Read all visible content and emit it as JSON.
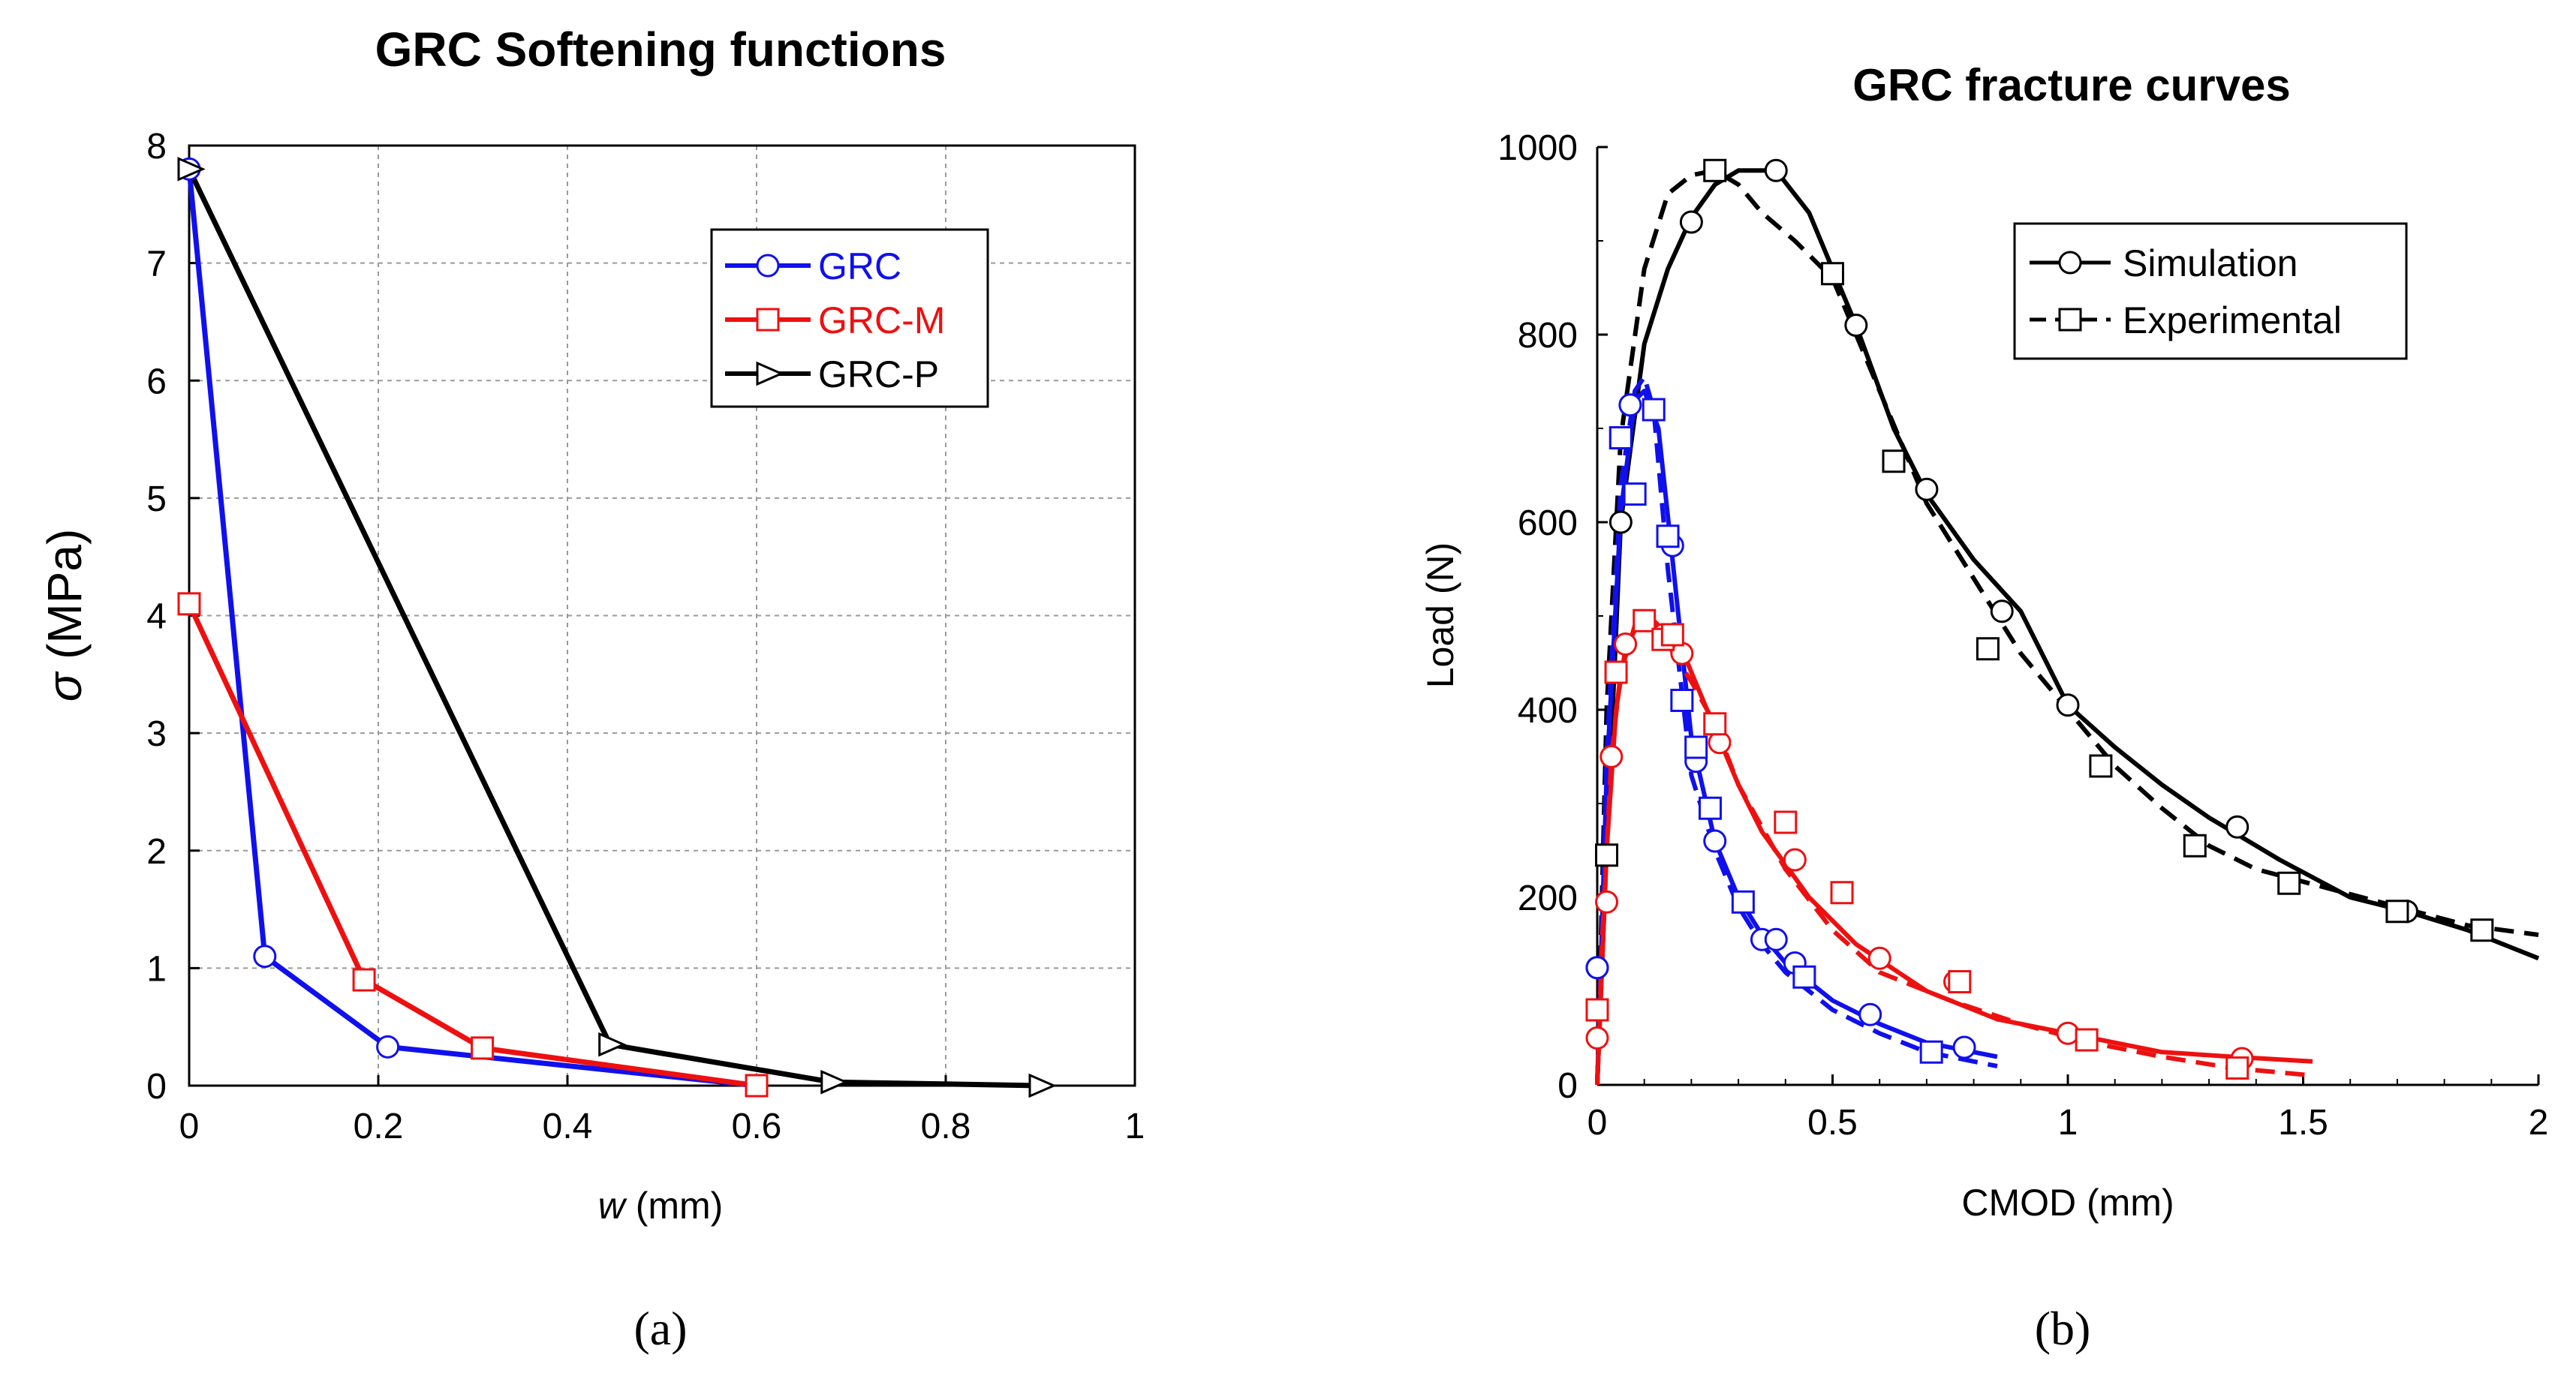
{
  "chart_data": [
    {
      "type": "line",
      "title": "GRC Softening functions",
      "xlabel_var": "w",
      "xlabel_unit": " (mm)",
      "ylabel_var": "σ",
      "ylabel_unit": " (MPa)",
      "xlim": [
        0,
        1
      ],
      "ylim": [
        0,
        8
      ],
      "xticks": [
        0,
        0.2,
        0.4,
        0.6,
        0.8,
        1
      ],
      "xtick_labels": [
        "0",
        "0.2",
        "0.4",
        "0.6",
        "0.8",
        "1"
      ],
      "yticks": [
        0,
        1,
        2,
        3,
        4,
        5,
        6,
        7,
        8
      ],
      "ytick_labels": [
        "0",
        "1",
        "2",
        "3",
        "4",
        "5",
        "6",
        "7",
        "8"
      ],
      "grid": true,
      "legend_position": "top-right",
      "panel_label": "(a)",
      "series": [
        {
          "name": "GRC",
          "color": "#1010ee",
          "marker": "circle",
          "x": [
            0,
            0.08,
            0.21,
            0.6
          ],
          "y": [
            7.8,
            1.1,
            0.33,
            0.0
          ]
        },
        {
          "name": "GRC-M",
          "color": "#ee1010",
          "marker": "square",
          "x": [
            0,
            0.185,
            0.31,
            0.6
          ],
          "y": [
            4.1,
            0.9,
            0.32,
            0.0
          ]
        },
        {
          "name": "GRC-P",
          "color": "#000000",
          "marker": "triangle-right",
          "x": [
            0,
            0.445,
            0.68,
            0.9
          ],
          "y": [
            7.8,
            0.35,
            0.03,
            0.0
          ]
        }
      ]
    },
    {
      "type": "line",
      "title": "GRC fracture curves",
      "xlabel": "CMOD (mm)",
      "ylabel": "Load (N)",
      "xlim": [
        0,
        2
      ],
      "ylim": [
        0,
        1000
      ],
      "xticks": [
        0,
        0.5,
        1,
        1.5,
        2
      ],
      "xtick_labels": [
        "0",
        "0.5",
        "1",
        "1.5",
        "2"
      ],
      "yticks": [
        0,
        200,
        400,
        600,
        800,
        1000
      ],
      "ytick_labels": [
        "0",
        "200",
        "400",
        "600",
        "800",
        "1000"
      ],
      "grid": false,
      "legend_position": "top-right",
      "legend": [
        {
          "name": "Simulation",
          "style": "solid",
          "marker": "circle"
        },
        {
          "name": "Experimental",
          "style": "dashed",
          "marker": "square"
        }
      ],
      "panel_label": "(b)",
      "series": [
        {
          "name": "GRC-P Simulation",
          "color": "#000000",
          "style": "solid",
          "marker": "circle",
          "x": [
            0,
            0.02,
            0.05,
            0.1,
            0.15,
            0.2,
            0.25,
            0.3,
            0.38,
            0.45,
            0.55,
            0.63,
            0.7,
            0.8,
            0.9,
            1.0,
            1.1,
            1.2,
            1.3,
            1.45,
            1.6,
            1.72,
            1.85,
            2.0
          ],
          "y": [
            0,
            250,
            600,
            790,
            870,
            925,
            960,
            975,
            975,
            930,
            810,
            700,
            630,
            560,
            505,
            405,
            360,
            320,
            285,
            240,
            200,
            185,
            165,
            135
          ],
          "marker_x": [
            0.0,
            0.02,
            0.05,
            0.2,
            0.38,
            0.55,
            0.7,
            0.86,
            1.0,
            1.36,
            1.72
          ],
          "marker_y": [
            125,
            245,
            600,
            920,
            975,
            810,
            635,
            505,
            405,
            275,
            185
          ]
        },
        {
          "name": "GRC-P Experimental",
          "color": "#000000",
          "style": "dashed",
          "marker": "square",
          "x": [
            0,
            0.02,
            0.05,
            0.1,
            0.15,
            0.2,
            0.25,
            0.3,
            0.35,
            0.42,
            0.5,
            0.6,
            0.7,
            0.8,
            0.9,
            1.0,
            1.1,
            1.2,
            1.3,
            1.4,
            1.55,
            1.7,
            1.85,
            2.0
          ],
          "y": [
            0,
            400,
            690,
            870,
            950,
            970,
            975,
            960,
            930,
            900,
            860,
            740,
            620,
            540,
            460,
            400,
            340,
            295,
            255,
            230,
            210,
            190,
            170,
            160
          ],
          "marker_x": [
            0.02,
            0.05,
            0.25,
            0.5,
            0.63,
            0.83,
            1.07,
            1.27,
            1.47,
            1.7,
            1.88
          ],
          "marker_y": [
            245,
            690,
            975,
            865,
            665,
            465,
            340,
            255,
            215,
            185,
            165
          ]
        },
        {
          "name": "GRC Simulation",
          "color": "#1010ee",
          "style": "solid",
          "marker": "circle",
          "x": [
            0,
            0.02,
            0.05,
            0.08,
            0.1,
            0.13,
            0.16,
            0.2,
            0.25,
            0.3,
            0.35,
            0.4,
            0.45,
            0.5,
            0.6,
            0.7,
            0.85
          ],
          "y": [
            0,
            330,
            610,
            730,
            740,
            700,
            560,
            370,
            260,
            200,
            160,
            130,
            110,
            90,
            65,
            45,
            30
          ],
          "marker_x": [
            0.0,
            0.07,
            0.16,
            0.21,
            0.25,
            0.35,
            0.38,
            0.42,
            0.58,
            0.78
          ],
          "marker_y": [
            125,
            725,
            575,
            345,
            260,
            155,
            155,
            130,
            75,
            40
          ]
        },
        {
          "name": "GRC Experimental",
          "color": "#1010ee",
          "style": "dashed",
          "marker": "square",
          "x": [
            0,
            0.02,
            0.05,
            0.08,
            0.1,
            0.12,
            0.15,
            0.2,
            0.25,
            0.3,
            0.35,
            0.4,
            0.45,
            0.5,
            0.6,
            0.7,
            0.85
          ],
          "y": [
            0,
            350,
            640,
            740,
            755,
            720,
            550,
            330,
            250,
            190,
            150,
            120,
            100,
            80,
            55,
            35,
            20
          ],
          "marker_x": [
            0.05,
            0.08,
            0.12,
            0.15,
            0.18,
            0.21,
            0.24,
            0.31,
            0.44,
            0.71
          ],
          "marker_y": [
            690,
            630,
            720,
            585,
            410,
            360,
            295,
            195,
            115,
            35
          ]
        },
        {
          "name": "GRC-M Simulation",
          "color": "#ee1010",
          "style": "solid",
          "marker": "circle",
          "x": [
            0,
            0.02,
            0.04,
            0.06,
            0.09,
            0.11,
            0.14,
            0.18,
            0.2,
            0.25,
            0.3,
            0.35,
            0.45,
            0.55,
            0.7,
            0.85,
            1.0,
            1.2,
            1.35,
            1.52
          ],
          "y": [
            0,
            250,
            400,
            465,
            495,
            500,
            485,
            465,
            440,
            380,
            320,
            270,
            200,
            150,
            100,
            70,
            55,
            35,
            30,
            25
          ],
          "marker_x": [
            0.0,
            0.02,
            0.03,
            0.06,
            0.14,
            0.18,
            0.26,
            0.42,
            0.6,
            0.76,
            1.0,
            1.37
          ],
          "marker_y": [
            50,
            195,
            350,
            470,
            480,
            460,
            365,
            240,
            135,
            110,
            55,
            28
          ]
        },
        {
          "name": "GRC-M Experimental",
          "color": "#ee1010",
          "style": "dashed",
          "marker": "square",
          "x": [
            0,
            0.01,
            0.03,
            0.05,
            0.08,
            0.1,
            0.12,
            0.15,
            0.2,
            0.25,
            0.3,
            0.4,
            0.5,
            0.6,
            0.75,
            0.9,
            1.05,
            1.2,
            1.35,
            1.52
          ],
          "y": [
            0,
            150,
            350,
            440,
            490,
            495,
            485,
            470,
            430,
            385,
            320,
            230,
            165,
            120,
            90,
            65,
            45,
            30,
            18,
            10
          ],
          "marker_x": [
            0.0,
            0.04,
            0.1,
            0.14,
            0.16,
            0.25,
            0.4,
            0.52,
            0.77,
            1.04,
            1.36
          ],
          "marker_y": [
            80,
            440,
            495,
            475,
            480,
            385,
            280,
            205,
            110,
            48,
            18
          ]
        }
      ]
    }
  ]
}
